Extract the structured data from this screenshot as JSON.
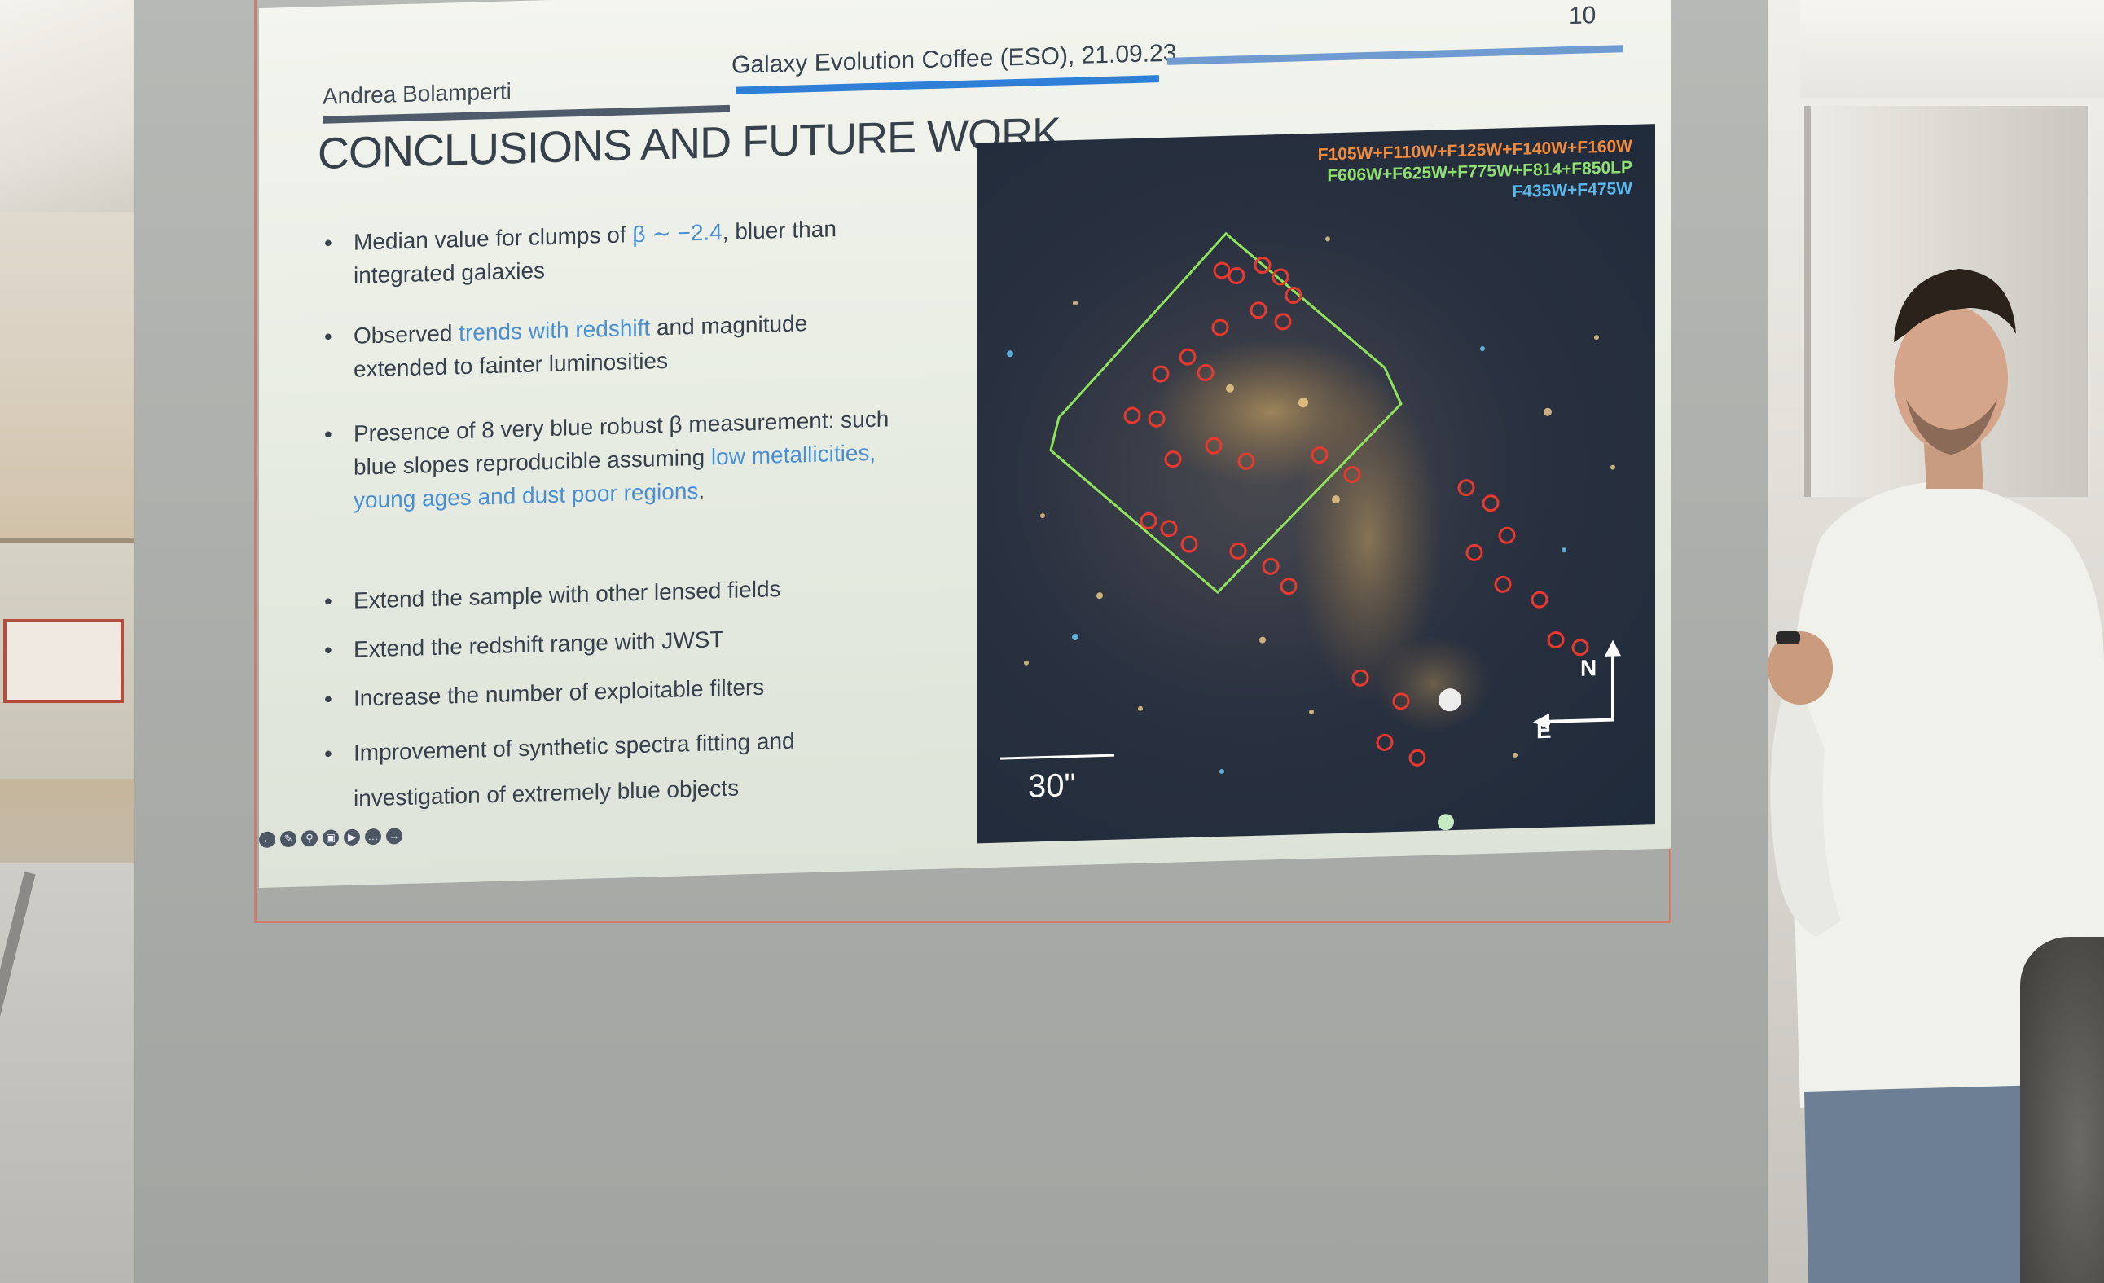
{
  "slide": {
    "author": "Andrea Bolamperti",
    "event": "Galaxy Evolution Coffee (ESO), 21.09.23",
    "page_number": "10",
    "title": "CONCLUSIONS AND FUTURE WORK",
    "bullets_conclusions": [
      {
        "before": "Median value for clumps of ",
        "highlight": "β ∼ −2.4",
        "after": ", bluer than integrated galaxies"
      },
      {
        "before": "Observed ",
        "highlight": "trends with redshift",
        "after": " and magnitude extended to fainter luminosities"
      },
      {
        "before": "Presence of 8 very blue robust β measurement: such blue slopes reproducible assuming ",
        "highlight": "low metallicities, young ages and dust poor regions",
        "after": "."
      }
    ],
    "bullets_future": [
      "Extend the sample with other lensed fields",
      "Extend the redshift range with JWST",
      "Increase the number of exploitable filters",
      "Improvement of synthetic spectra fitting and investigation of extremely blue objects"
    ],
    "bullet_symbol": "•",
    "filters": [
      {
        "text": "F105W+F110W+F125W+F140W+F160W",
        "color": "#f08a3c"
      },
      {
        "text": "F606W+F625W+F775W+F814+F850LP",
        "color": "#8fe070"
      },
      {
        "text": "F435W+F475W",
        "color": "#5ab8ea"
      }
    ],
    "scale_label": "30\"",
    "compass_n": "N",
    "compass_e": "E",
    "toolbar_icons": [
      "back-icon",
      "pen-icon",
      "zoom-icon",
      "captions-icon",
      "video-icon",
      "more-icon",
      "forward-icon"
    ],
    "colors": {
      "accent_bar": "#2f7fd6",
      "header_bar_dark": "#4f5b6a",
      "header_bar_light": "#6f9bd0",
      "highlight_text": "#4a8fd4",
      "region_outline": "#8fe35a",
      "clump_markers": "#e8392f"
    }
  }
}
